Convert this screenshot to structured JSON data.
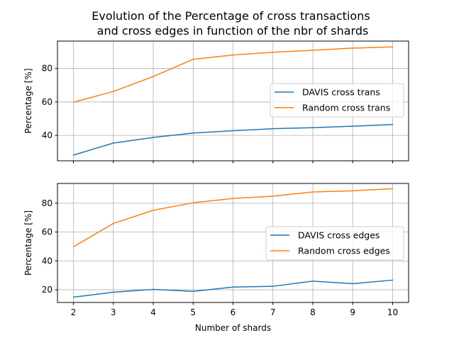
{
  "chart_data": [
    {
      "type": "line",
      "title": "Evolution of the Percentage of cross transactions\nand cross edges in function of the nbr of shards",
      "xlabel": "",
      "ylabel": "Percentage [%]",
      "x": [
        2,
        3,
        4,
        5,
        6,
        7,
        8,
        9,
        10
      ],
      "xlim": [
        1.6,
        10.4
      ],
      "ylim": [
        24.8,
        96.4
      ],
      "yticks": [
        40,
        60,
        80
      ],
      "grid": true,
      "legend": "center-right",
      "series": [
        {
          "name": "DAVIS cross trans",
          "color": "#1f77b4",
          "values": [
            28.2,
            35.4,
            38.8,
            41.4,
            42.8,
            44.0,
            44.6,
            45.5,
            46.5
          ]
        },
        {
          "name": "Random cross trans",
          "color": "#ff7f0e",
          "values": [
            59.8,
            66.3,
            75.2,
            85.5,
            88.1,
            89.7,
            90.9,
            92.2,
            92.9
          ]
        }
      ]
    },
    {
      "type": "line",
      "title": "",
      "xlabel": "Number of shards",
      "ylabel": "Percentage [%]",
      "x": [
        2,
        3,
        4,
        5,
        6,
        7,
        8,
        9,
        10
      ],
      "xlim": [
        1.6,
        10.4
      ],
      "ylim": [
        11.2,
        93.7
      ],
      "yticks": [
        20,
        40,
        60,
        80
      ],
      "xticks": [
        2,
        3,
        4,
        5,
        6,
        7,
        8,
        9,
        10
      ],
      "grid": true,
      "legend": "center-right",
      "series": [
        {
          "name": "DAVIS cross edges",
          "color": "#1f77b4",
          "values": [
            14.9,
            18.3,
            20.3,
            18.9,
            21.9,
            22.4,
            26.0,
            24.2,
            26.7
          ]
        },
        {
          "name": "Random cross edges",
          "color": "#ff7f0e",
          "values": [
            49.8,
            66.0,
            75.1,
            80.3,
            83.3,
            84.9,
            87.8,
            88.6,
            90.1
          ]
        }
      ]
    }
  ]
}
